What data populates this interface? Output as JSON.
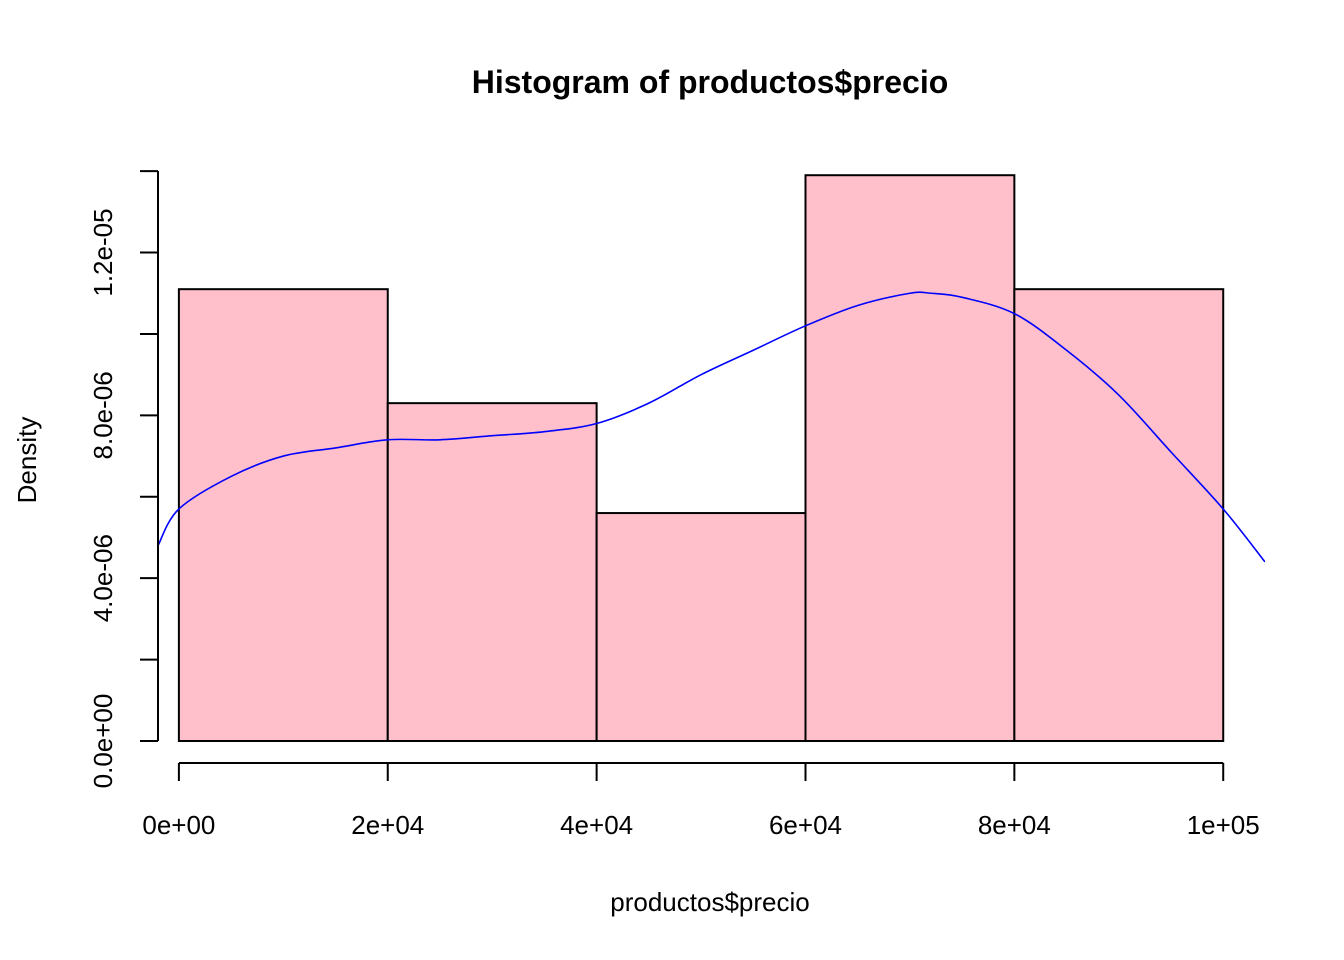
{
  "chart_data": {
    "type": "bar",
    "title": "Histogram of productos$precio",
    "xlabel": "productos$precio",
    "ylabel": "Density",
    "bins": [
      {
        "from": 0,
        "to": 20000,
        "density": 1.11e-05
      },
      {
        "from": 20000,
        "to": 40000,
        "density": 8.3e-06
      },
      {
        "from": 40000,
        "to": 60000,
        "density": 5.6e-06
      },
      {
        "from": 60000,
        "to": 80000,
        "density": 1.39e-05
      },
      {
        "from": 80000,
        "to": 100000,
        "density": 1.11e-05
      }
    ],
    "x_ticks": [
      {
        "value": 0,
        "label": "0e+00"
      },
      {
        "value": 20000,
        "label": "2e+04"
      },
      {
        "value": 40000,
        "label": "4e+04"
      },
      {
        "value": 60000,
        "label": "6e+04"
      },
      {
        "value": 80000,
        "label": "8e+04"
      },
      {
        "value": 100000,
        "label": "1e+05"
      }
    ],
    "y_ticks": [
      {
        "value": 0,
        "label": "0.0e+00"
      },
      {
        "value": 2e-06,
        "label": ""
      },
      {
        "value": 4e-06,
        "label": "4.0e-06"
      },
      {
        "value": 6e-06,
        "label": ""
      },
      {
        "value": 8e-06,
        "label": "8.0e-06"
      },
      {
        "value": 1e-05,
        "label": ""
      },
      {
        "value": 1.2e-05,
        "label": "1.2e-05"
      },
      {
        "value": 1.4e-05,
        "label": ""
      }
    ],
    "xlim": [
      -2000,
      104000
    ],
    "ylim": [
      0,
      1.42e-05
    ],
    "bar_color": "#FFC0CB",
    "density_curve": {
      "color": "#0000FF",
      "x": [
        -2000,
        0,
        5000,
        10000,
        15000,
        20000,
        25000,
        30000,
        35000,
        40000,
        45000,
        50000,
        55000,
        60000,
        65000,
        70000,
        72000,
        75000,
        80000,
        85000,
        90000,
        95000,
        100000,
        104000
      ],
      "y": [
        4.8e-06,
        5.7e-06,
        6.5e-06,
        7e-06,
        7.2e-06,
        7.4e-06,
        7.4e-06,
        7.5e-06,
        7.6e-06,
        7.8e-06,
        8.3e-06,
        9e-06,
        9.6e-06,
        1.02e-05,
        1.07e-05,
        1.1e-05,
        1.1e-05,
        1.09e-05,
        1.05e-05,
        9.6e-06,
        8.5e-06,
        7.1e-06,
        5.7e-06,
        4.4e-06
      ]
    }
  }
}
